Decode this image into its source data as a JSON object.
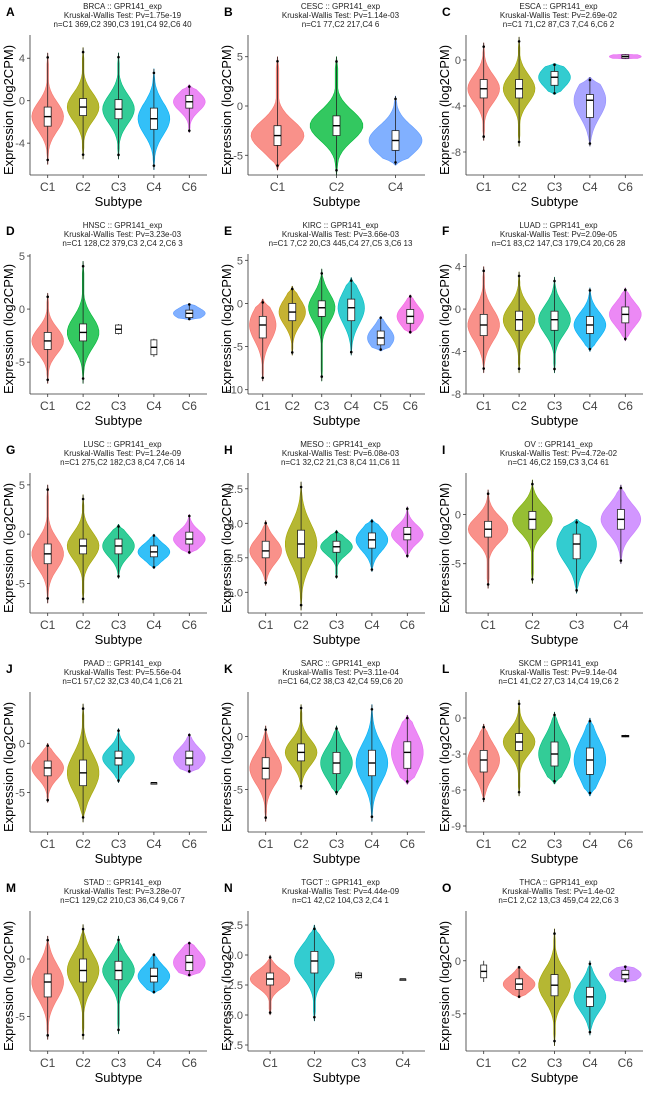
{
  "figure": {
    "y_label": "Expression (log2CPM)",
    "x_label": "Subtype"
  },
  "chart_data": [
    {
      "type": "violin",
      "panel": "A",
      "line1": "BRCA :: GPR141_exp",
      "line2": "Kruskal-Wallis Test: Pv=1.75e-19",
      "line3": "n=C1 369,C2 390,C3 191,C4 92,C6 40",
      "ylim": [
        -7,
        6
      ],
      "yticks": [
        "-4",
        "0",
        "4"
      ],
      "ytick_values": [
        -4,
        0,
        4
      ],
      "categories": [
        "C1",
        "C2",
        "C3",
        "C4",
        "C6"
      ],
      "colors": [
        "#F8766D",
        "#A3A500",
        "#00BF7D",
        "#00B0F6",
        "#E76BF3"
      ],
      "median": [
        -1.5,
        -0.6,
        -0.8,
        -1.7,
        -0.1
      ],
      "q1": [
        -2.4,
        -1.4,
        -1.7,
        -2.7,
        -0.7
      ],
      "q3": [
        -0.6,
        0.2,
        0.1,
        -0.7,
        0.5
      ],
      "min": [
        -6,
        -5.5,
        -5.5,
        -6.5,
        -3
      ],
      "max": [
        4.5,
        5,
        4.5,
        3,
        1.5
      ]
    },
    {
      "type": "violin",
      "panel": "B",
      "line1": "CESC :: GPR141_exp",
      "line2": "Kruskal-Wallis Test: Pv=1.14e-03",
      "line3": "n=C1 77,C2 217,C4 6",
      "ylim": [
        -7,
        7
      ],
      "yticks": [
        "-5",
        "0",
        "5"
      ],
      "ytick_values": [
        -5,
        0,
        5
      ],
      "categories": [
        "C1",
        "C2",
        "C4"
      ],
      "colors": [
        "#F8766D",
        "#00BA38",
        "#619CFF"
      ],
      "median": [
        -3,
        -2,
        -3.5
      ],
      "q1": [
        -4,
        -3,
        -4.5
      ],
      "q3": [
        -2,
        -1,
        -2.5
      ],
      "min": [
        -6.5,
        -7,
        -6
      ],
      "max": [
        5,
        5,
        1
      ]
    },
    {
      "type": "violin",
      "panel": "C",
      "line1": "ESCA :: GPR141_exp",
      "line2": "Kruskal-Wallis Test: Pv=2.69e-02",
      "line3": "n=C1 71,C2 87,C3 7,C4 6,C6 2",
      "ylim": [
        -10,
        2
      ],
      "yticks": [
        "0",
        "-4",
        "-8"
      ],
      "ytick_values": [
        0,
        -4,
        -8
      ],
      "categories": [
        "C1",
        "C2",
        "C3",
        "C4",
        "C6"
      ],
      "colors": [
        "#F8766D",
        "#A3A500",
        "#00BFC4",
        "#9590FF",
        "#E76BF3"
      ],
      "median": [
        -2.5,
        -2.5,
        -1.5,
        -3.5,
        0.3
      ],
      "q1": [
        -3.3,
        -3.3,
        -2.2,
        -5,
        0.15
      ],
      "q3": [
        -1.7,
        -1.7,
        -1,
        -3,
        0.45
      ],
      "min": [
        -7,
        -7.5,
        -3,
        -7.5,
        0.1
      ],
      "max": [
        1.5,
        2,
        -0.3,
        -1.5,
        0.5
      ]
    },
    {
      "type": "violin",
      "panel": "D",
      "line1": "HNSC :: GPR141_exp",
      "line2": "Kruskal-Wallis Test: Pv=3.23e-03",
      "line3": "n=C1 128,C2 379,C3 2,C4 2,C6 3",
      "ylim": [
        -8,
        5
      ],
      "yticks": [
        "5",
        "0",
        "-5"
      ],
      "ytick_values": [
        5,
        0,
        -5
      ],
      "categories": [
        "C1",
        "C2",
        "C3",
        "C4",
        "C6"
      ],
      "colors": [
        "#F8766D",
        "#00BA38",
        "#000000",
        "#000000",
        "#619CFF"
      ],
      "median": [
        -3,
        -2.2,
        -1.9,
        -3.6,
        -0.4
      ],
      "q1": [
        -3.8,
        -3,
        -2.3,
        -4.3,
        -0.8
      ],
      "q3": [
        -2.2,
        -1.4,
        -1.5,
        -2.9,
        -0.1
      ],
      "min": [
        -7,
        -7,
        -2.4,
        -4.5,
        -1
      ],
      "max": [
        1.5,
        4.5,
        -1.4,
        -2.8,
        0.5
      ]
    },
    {
      "type": "violin",
      "panel": "E",
      "line1": "KIRC :: GPR141_exp",
      "line2": "Kruskal-Wallis Test: Pv=3.66e-03",
      "line3": "n=C1 7,C2 20,C3 445,C4 27,C5 3,C6 13",
      "ylim": [
        -10.5,
        5.5
      ],
      "yticks": [
        "5",
        "0",
        "-5",
        "-10"
      ],
      "ytick_values": [
        5,
        0,
        -5,
        -10
      ],
      "categories": [
        "C1",
        "C2",
        "C3",
        "C4",
        "C5",
        "C6"
      ],
      "colors": [
        "#F8766D",
        "#B79F00",
        "#00BA38",
        "#00BFC4",
        "#619CFF",
        "#F564E3"
      ],
      "median": [
        -2.5,
        -1,
        -0.5,
        -0.5,
        -4,
        -1.5
      ],
      "q1": [
        -4,
        -2,
        -1.5,
        -2,
        -4.8,
        -2.3
      ],
      "q3": [
        -1.5,
        0,
        0.3,
        0.5,
        -3.2,
        -0.7
      ],
      "min": [
        -9,
        -6,
        -9,
        -6,
        -5.5,
        -3.5
      ],
      "max": [
        0.5,
        2,
        4,
        3,
        -1.5,
        1
      ]
    },
    {
      "type": "violin",
      "panel": "F",
      "line1": "LUAD :: GPR141_exp",
      "line2": "Kruskal-Wallis Test: Pv=2.09e-05",
      "line3": "n=C1 83,C2 147,C3 179,C4 20,C6 28",
      "ylim": [
        -8,
        5
      ],
      "yticks": [
        "4",
        "0",
        "-4",
        "-8"
      ],
      "ytick_values": [
        4,
        0,
        -4,
        -8
      ],
      "categories": [
        "C1",
        "C2",
        "C3",
        "C4",
        "C6"
      ],
      "colors": [
        "#F8766D",
        "#A3A500",
        "#00BF7D",
        "#00B0F6",
        "#E76BF3"
      ],
      "median": [
        -1.5,
        -1,
        -1,
        -1.5,
        -0.5
      ],
      "q1": [
        -2.5,
        -2,
        -2,
        -2.3,
        -1.3
      ],
      "q3": [
        -0.5,
        -0.2,
        -0.2,
        -0.7,
        0.2
      ],
      "min": [
        -6,
        -6,
        -6,
        -4,
        -3
      ],
      "max": [
        4,
        3.5,
        3,
        2,
        2
      ]
    },
    {
      "type": "violin",
      "panel": "G",
      "line1": "LUSC :: GPR141_exp",
      "line2": "Kruskal-Wallis Test: Pv=1.24e-09",
      "line3": "n=C1 275,C2 182,C3 8,C4 7,C6 14",
      "ylim": [
        -8,
        6
      ],
      "yticks": [
        "5",
        "0",
        "-5"
      ],
      "ytick_values": [
        5,
        0,
        -5
      ],
      "categories": [
        "C1",
        "C2",
        "C3",
        "C4",
        "C6"
      ],
      "colors": [
        "#F8766D",
        "#A3A500",
        "#00BF7D",
        "#00B0F6",
        "#E76BF3"
      ],
      "median": [
        -2,
        -1.2,
        -1.2,
        -1.8,
        -0.5
      ],
      "q1": [
        -3,
        -2,
        -2,
        -2.3,
        -1
      ],
      "q3": [
        -1,
        -0.5,
        -0.5,
        -1.2,
        0.2
      ],
      "min": [
        -7,
        -7,
        -4.5,
        -3.5,
        -2
      ],
      "max": [
        5,
        4,
        1,
        0,
        2
      ]
    },
    {
      "type": "violin",
      "panel": "H",
      "line1": "MESO :: GPR141_exp",
      "line2": "Kruskal-Wallis Test: Pv=6.08e-03",
      "line3": "n=C1 32,C2 21,C3 8,C4 11,C6 11",
      "ylim": [
        -6.5,
        3.5
      ],
      "yticks": [
        "2.5",
        "0.0",
        "-2.5",
        "-5.0"
      ],
      "ytick_values": [
        2.5,
        0,
        -2.5,
        -5
      ],
      "categories": [
        "C1",
        "C2",
        "C3",
        "C4",
        "C6"
      ],
      "colors": [
        "#F8766D",
        "#A3A500",
        "#00BF7D",
        "#00B0F6",
        "#E76BF3"
      ],
      "median": [
        -2,
        -1.5,
        -1.7,
        -1.2,
        -0.8
      ],
      "q1": [
        -2.5,
        -2.5,
        -2.1,
        -1.8,
        -1.2
      ],
      "q3": [
        -1.3,
        -0.5,
        -1.3,
        -0.7,
        -0.3
      ],
      "min": [
        -4.5,
        -6.3,
        -4,
        -3.5,
        -2.5
      ],
      "max": [
        0.2,
        3,
        -0.5,
        0.3,
        1.2
      ]
    },
    {
      "type": "violin",
      "panel": "I",
      "line1": "OV :: GPR141_exp",
      "line2": "Kruskal-Wallis Test: Pv=4.72e-02",
      "line3": "n=C1 46,C2 159,C3 3,C4 61",
      "ylim": [
        -10,
        4
      ],
      "yticks": [
        "0",
        "-5"
      ],
      "ytick_values": [
        0,
        -5
      ],
      "categories": [
        "C1",
        "C2",
        "C3",
        "C4"
      ],
      "colors": [
        "#F8766D",
        "#7CAE00",
        "#00BFC4",
        "#C77CFF"
      ],
      "median": [
        -1.5,
        -0.5,
        -3,
        -0.5
      ],
      "q1": [
        -2.3,
        -1.5,
        -4.5,
        -1.5
      ],
      "q3": [
        -0.7,
        0.3,
        -2,
        0.5
      ],
      "min": [
        -7.5,
        -7,
        -8,
        -5
      ],
      "max": [
        2.5,
        3.5,
        -0.5,
        3
      ]
    },
    {
      "type": "violin",
      "panel": "J",
      "line1": "PAAD :: GPR141_exp",
      "line2": "Kruskal-Wallis Test: Pv=5.56e-04",
      "line3": "n=C1 57,C2 32,C3 40,C4 1,C6 21",
      "ylim": [
        -9,
        5
      ],
      "yticks": [
        "0",
        "-5"
      ],
      "ytick_values": [
        0,
        -5
      ],
      "categories": [
        "C1",
        "C2",
        "C3",
        "C4",
        "C6"
      ],
      "colors": [
        "#F8766D",
        "#A3A500",
        "#00BFC4",
        "#000000",
        "#C77CFF"
      ],
      "median": [
        -2.5,
        -3,
        -1.5,
        -4,
        -1.5
      ],
      "q1": [
        -3.3,
        -4.3,
        -2.2,
        -4,
        -2.2
      ],
      "q3": [
        -1.8,
        -1.7,
        -0.8,
        -4,
        -0.8
      ],
      "min": [
        -6,
        -8,
        -4,
        -4,
        -3
      ],
      "max": [
        0,
        4,
        1.5,
        -4,
        1
      ]
    },
    {
      "type": "violin",
      "panel": "K",
      "line1": "SARC :: GPR141_exp",
      "line2": "Kruskal-Wallis Test: Pv=3.11e-04",
      "line3": "n=C1 64,C2 38,C3 42,C4 59,C6 20",
      "ylim": [
        -9,
        4
      ],
      "yticks": [
        "0",
        "-5"
      ],
      "ytick_values": [
        0,
        -5
      ],
      "categories": [
        "C1",
        "C2",
        "C3",
        "C4",
        "C6"
      ],
      "colors": [
        "#F8766D",
        "#A3A500",
        "#00BF7D",
        "#00B0F6",
        "#E76BF3"
      ],
      "median": [
        -3,
        -1.5,
        -2.5,
        -2.5,
        -1.5
      ],
      "q1": [
        -4,
        -2.3,
        -3.5,
        -3.7,
        -3
      ],
      "q3": [
        -2,
        -0.7,
        -1.5,
        -1.3,
        -0.5
      ],
      "min": [
        -8,
        -5,
        -5.5,
        -8,
        -4.5
      ],
      "max": [
        1,
        3,
        1,
        3,
        2
      ]
    },
    {
      "type": "violin",
      "panel": "L",
      "line1": "SKCM :: GPR141_exp",
      "line2": "Kruskal-Wallis Test: Pv=9.14e-04",
      "line3": "n=C1 41,C2 27,C3 14,C4 19,C6 2",
      "ylim": [
        -9.5,
        2
      ],
      "yticks": [
        "0",
        "-3",
        "-6",
        "-9"
      ],
      "ytick_values": [
        0,
        -3,
        -6,
        -9
      ],
      "categories": [
        "C1",
        "C2",
        "C3",
        "C4",
        "C6"
      ],
      "colors": [
        "#F8766D",
        "#A3A500",
        "#00BF7D",
        "#00B0F6",
        "#E76BF3"
      ],
      "median": [
        -3.5,
        -2,
        -3,
        -3.5,
        -1.5
      ],
      "q1": [
        -4.5,
        -2.7,
        -4,
        -4.7,
        -1.55
      ],
      "q3": [
        -2.7,
        -1.3,
        -2,
        -2.5,
        -1.45
      ],
      "min": [
        -7,
        -6.5,
        -5.5,
        -6.5,
        -1.6
      ],
      "max": [
        -0.5,
        1.5,
        0.5,
        0,
        -1.4
      ]
    },
    {
      "type": "violin",
      "panel": "M",
      "line1": "STAD :: GPR141_exp",
      "line2": "Kruskal-Wallis Test: Pv=3.28e-07",
      "line3": "n=C1 129,C2 210,C3 36,C4 9,C6 7",
      "ylim": [
        -8,
        4
      ],
      "yticks": [
        "0",
        "-5"
      ],
      "ytick_values": [
        0,
        -5
      ],
      "categories": [
        "C1",
        "C2",
        "C3",
        "C4",
        "C6"
      ],
      "colors": [
        "#F8766D",
        "#A3A500",
        "#00BF7D",
        "#00B0F6",
        "#E76BF3"
      ],
      "median": [
        -2,
        -1,
        -1,
        -1.5,
        -0.3
      ],
      "q1": [
        -3.3,
        -2,
        -1.8,
        -2,
        -1
      ],
      "q3": [
        -1.3,
        0,
        -0.2,
        -0.8,
        0.3
      ],
      "min": [
        -7,
        -7,
        -6.5,
        -3,
        -1.5
      ],
      "max": [
        2,
        3,
        2,
        0.5,
        1.5
      ]
    },
    {
      "type": "violin",
      "panel": "N",
      "line1": "TGCT :: GPR141_exp",
      "line2": "Kruskal-Wallis Test: Pv=4.44e-09",
      "line3": "n=C1 42,C2 104,C3 2,C4 1",
      "ylim": [
        -8,
        3.5
      ],
      "yticks": [
        "2.5",
        "0.0",
        "-2.5",
        "-5.0",
        "-7.5"
      ],
      "ytick_values": [
        2.5,
        0,
        -2.5,
        -5,
        -7.5
      ],
      "categories": [
        "C1",
        "C2",
        "C3",
        "C4"
      ],
      "colors": [
        "#F8766D",
        "#00BFC4",
        "#000000",
        "#000000"
      ],
      "median": [
        -2,
        -0.5,
        -1.7,
        -2
      ],
      "q1": [
        -2.5,
        -1.5,
        -1.9,
        -2
      ],
      "q3": [
        -1.5,
        0.3,
        -1.5,
        -2
      ],
      "min": [
        -5,
        -5.5,
        -2,
        -2
      ],
      "max": [
        0,
        2.5,
        -1.4,
        -2
      ]
    },
    {
      "type": "violin",
      "panel": "O",
      "line1": "THCA :: GPR141_exp",
      "line2": "Kruskal-Wallis Test: Pv=1.4e-02",
      "line3": "n=C1 2,C2 13,C3 459,C4 22,C6 3",
      "ylim": [
        -8.5,
        4.5
      ],
      "yticks": [
        "0",
        "-5"
      ],
      "ytick_values": [
        0,
        -5
      ],
      "categories": [
        "C1",
        "C2",
        "C3",
        "C4",
        "C6"
      ],
      "colors": [
        "#000000",
        "#F8766D",
        "#A3A500",
        "#00BFC4",
        "#C77CFF"
      ],
      "median": [
        -1,
        -2.2,
        -2.3,
        -3.4,
        -1.3
      ],
      "q1": [
        -1.6,
        -2.7,
        -3.3,
        -4.3,
        -1.7
      ],
      "q3": [
        -0.4,
        -1.7,
        -1.3,
        -2.5,
        -0.9
      ],
      "min": [
        -2,
        -3.5,
        -8,
        -7,
        -2
      ],
      "max": [
        0,
        -0.5,
        3,
        0,
        -0.5
      ]
    }
  ]
}
